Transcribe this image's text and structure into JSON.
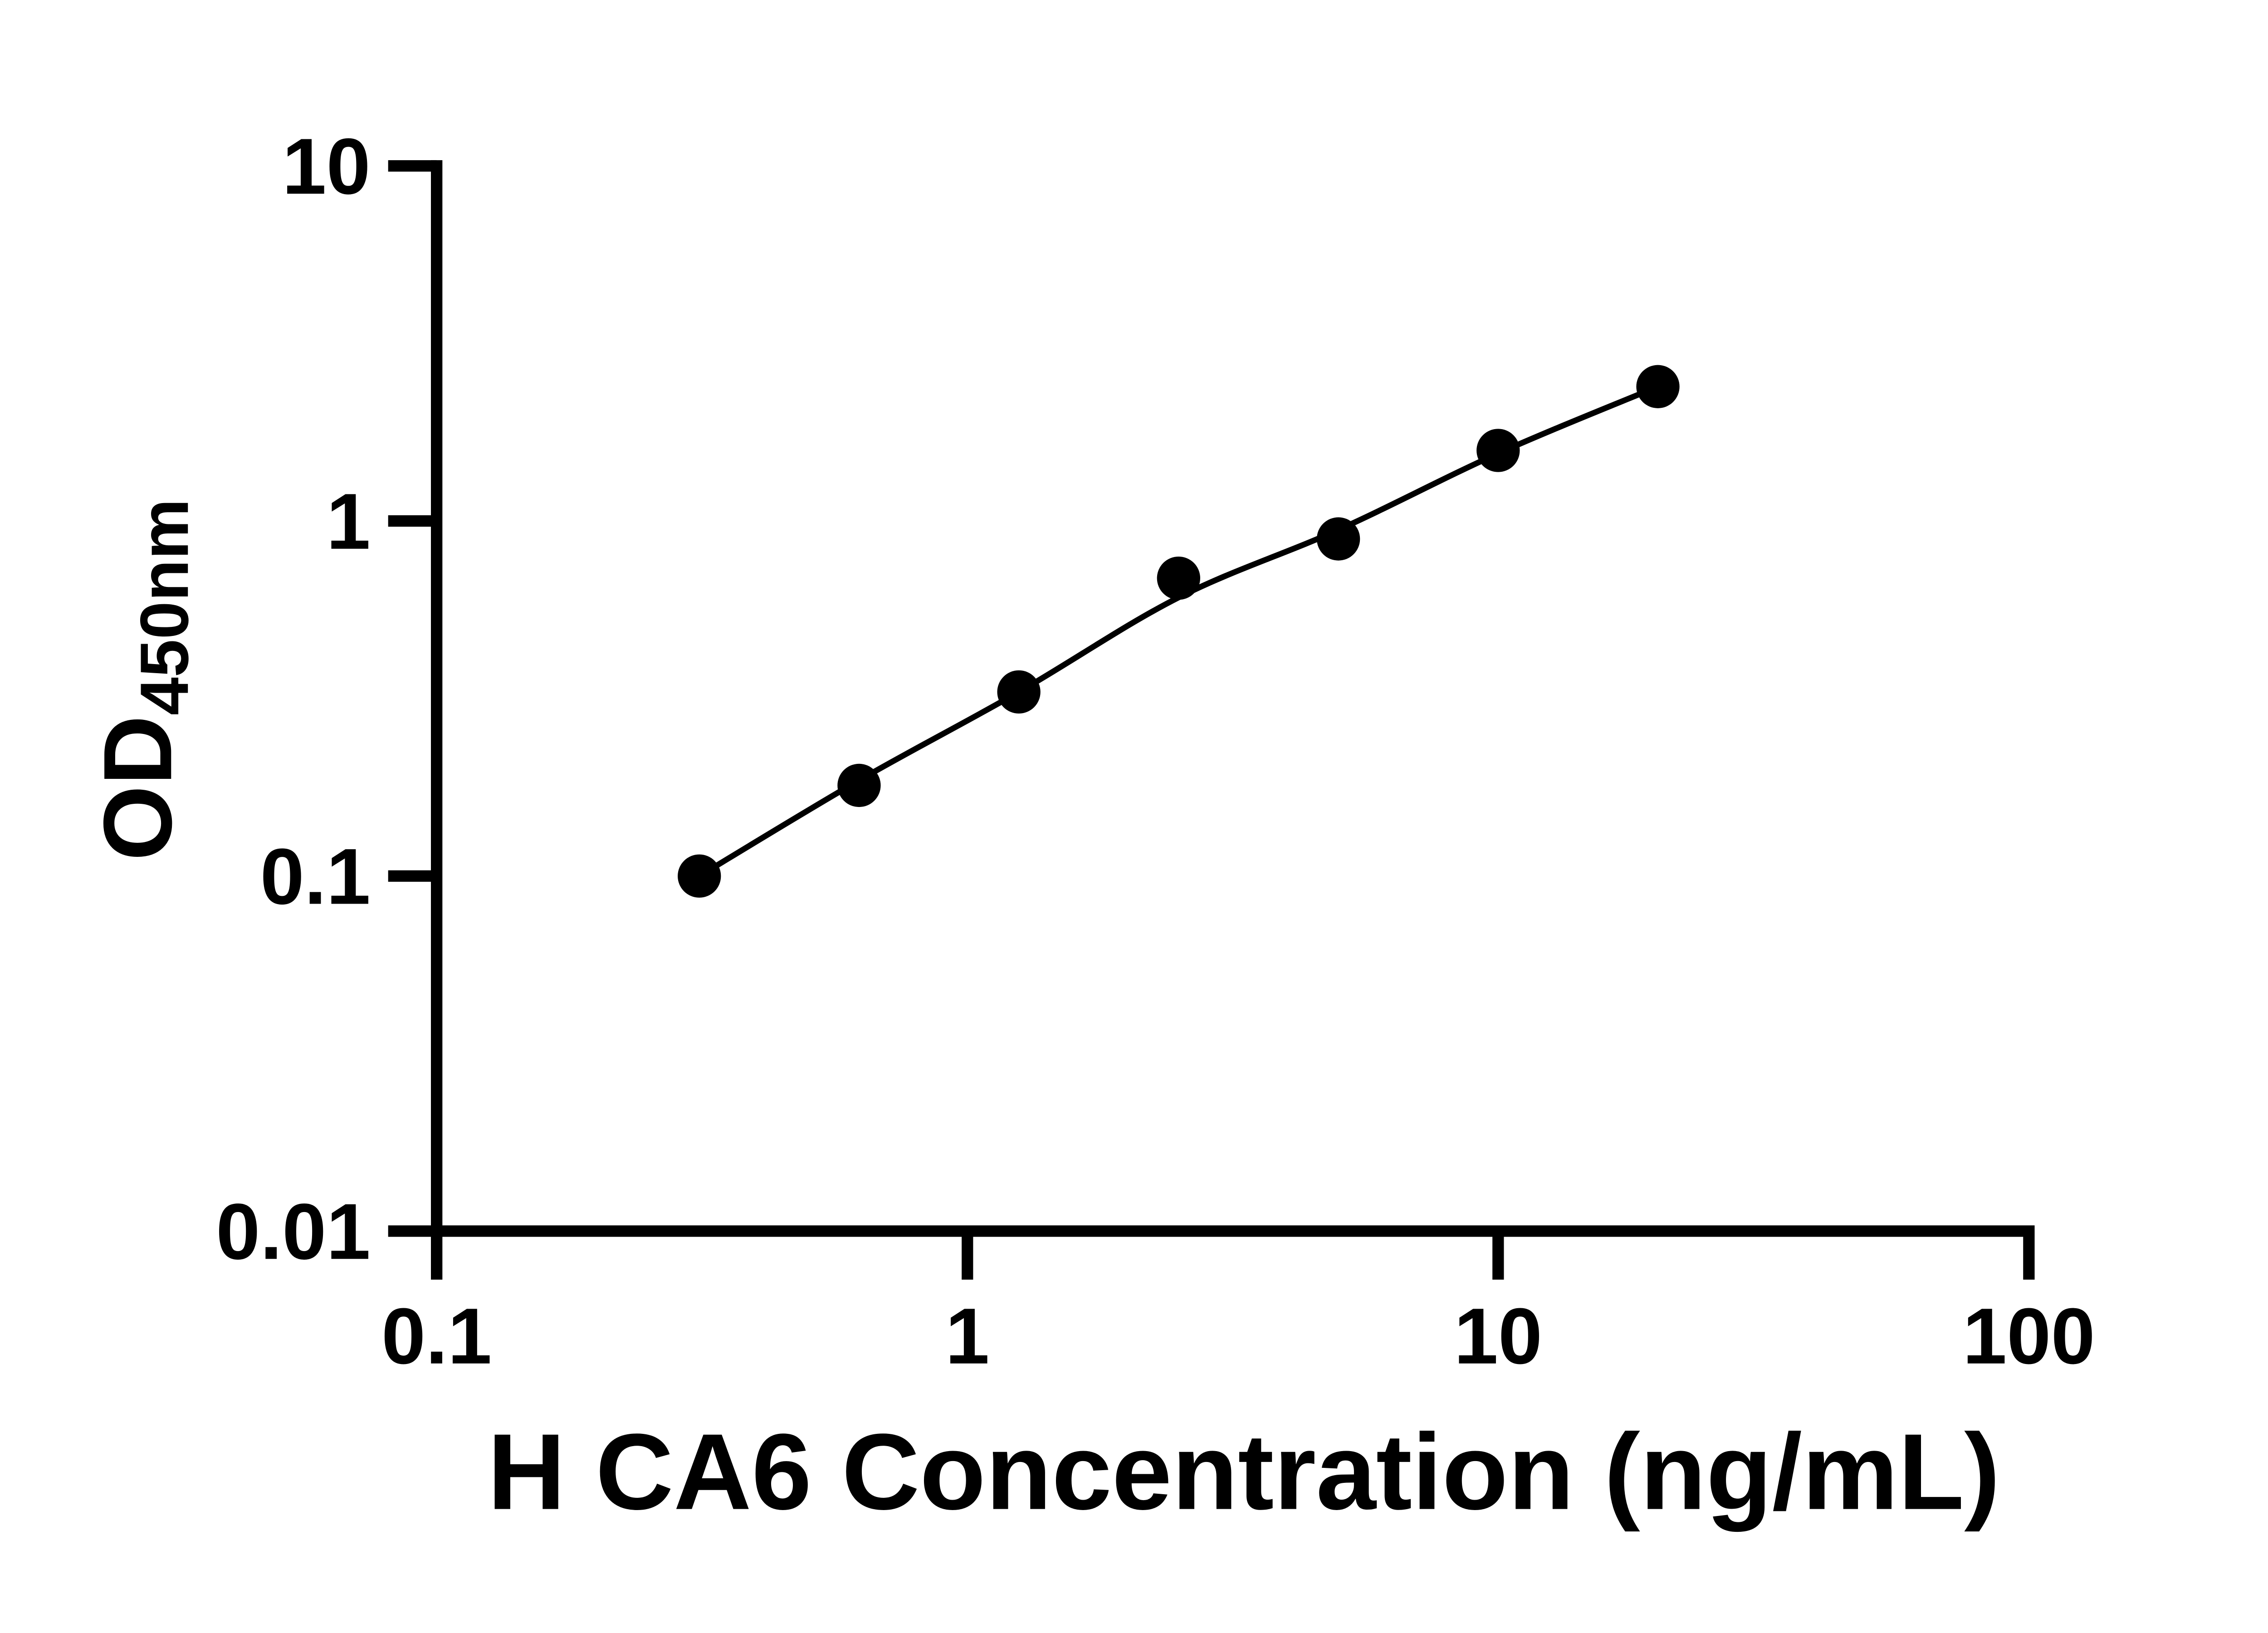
{
  "page": {
    "background_color": "#ffffff",
    "foreground_color": "#000000"
  },
  "chart_data": {
    "type": "scatter",
    "subtype": "log-log standard curve with fit line",
    "title": "",
    "xlabel": "H CA6 Concentration (ng/mL)",
    "ylabel_main": "OD",
    "ylabel_sub": "450nm",
    "x_scale": "log10",
    "y_scale": "log10",
    "xlim": [
      0.1,
      100
    ],
    "ylim": [
      0.01,
      10
    ],
    "grid": "off",
    "legend": "none",
    "x_ticks": [
      {
        "value": 0.1,
        "label": "0.1"
      },
      {
        "value": 1,
        "label": "1"
      },
      {
        "value": 10,
        "label": "10"
      },
      {
        "value": 100,
        "label": "100"
      }
    ],
    "y_ticks": [
      {
        "value": 0.01,
        "label": "0.01"
      },
      {
        "value": 0.1,
        "label": "0.1"
      },
      {
        "value": 1,
        "label": "1"
      },
      {
        "value": 10,
        "label": "10"
      }
    ],
    "points": {
      "x": [
        0.3125,
        0.625,
        1.25,
        2.5,
        5,
        10,
        20
      ],
      "od": [
        0.1,
        0.18,
        0.33,
        0.69,
        0.89,
        1.58,
        2.39
      ]
    },
    "fit_curve": {
      "x": [
        0.3125,
        0.625,
        1.25,
        2.5,
        5,
        10,
        20
      ],
      "od": [
        0.1,
        0.186,
        0.33,
        0.609,
        0.944,
        1.55,
        2.39
      ]
    },
    "marker_color": "#000000",
    "line_color": "#000000",
    "axis_color": "#000000"
  }
}
